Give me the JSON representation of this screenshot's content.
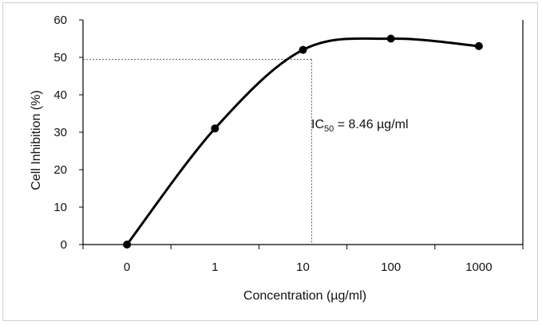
{
  "chart_data": {
    "type": "line",
    "x": [
      "0",
      "1",
      "10",
      "100",
      "1000"
    ],
    "series": [
      {
        "values": [
          0,
          31,
          52,
          55,
          53
        ]
      }
    ],
    "xlabel": "Concentration (µg/ml)",
    "ylabel": "Cell Inhibition (%)",
    "ylim": [
      0,
      60
    ],
    "yticks": [
      0,
      10,
      20,
      30,
      40,
      50,
      60
    ],
    "smooth": true,
    "markers": true,
    "grid": false,
    "annotation": {
      "prefix": "IC",
      "subscript": "50",
      "suffix": " = 8.46 µg/ml"
    },
    "ic50_guide": {
      "x_position": 2.1,
      "y_value": 49.5
    }
  }
}
